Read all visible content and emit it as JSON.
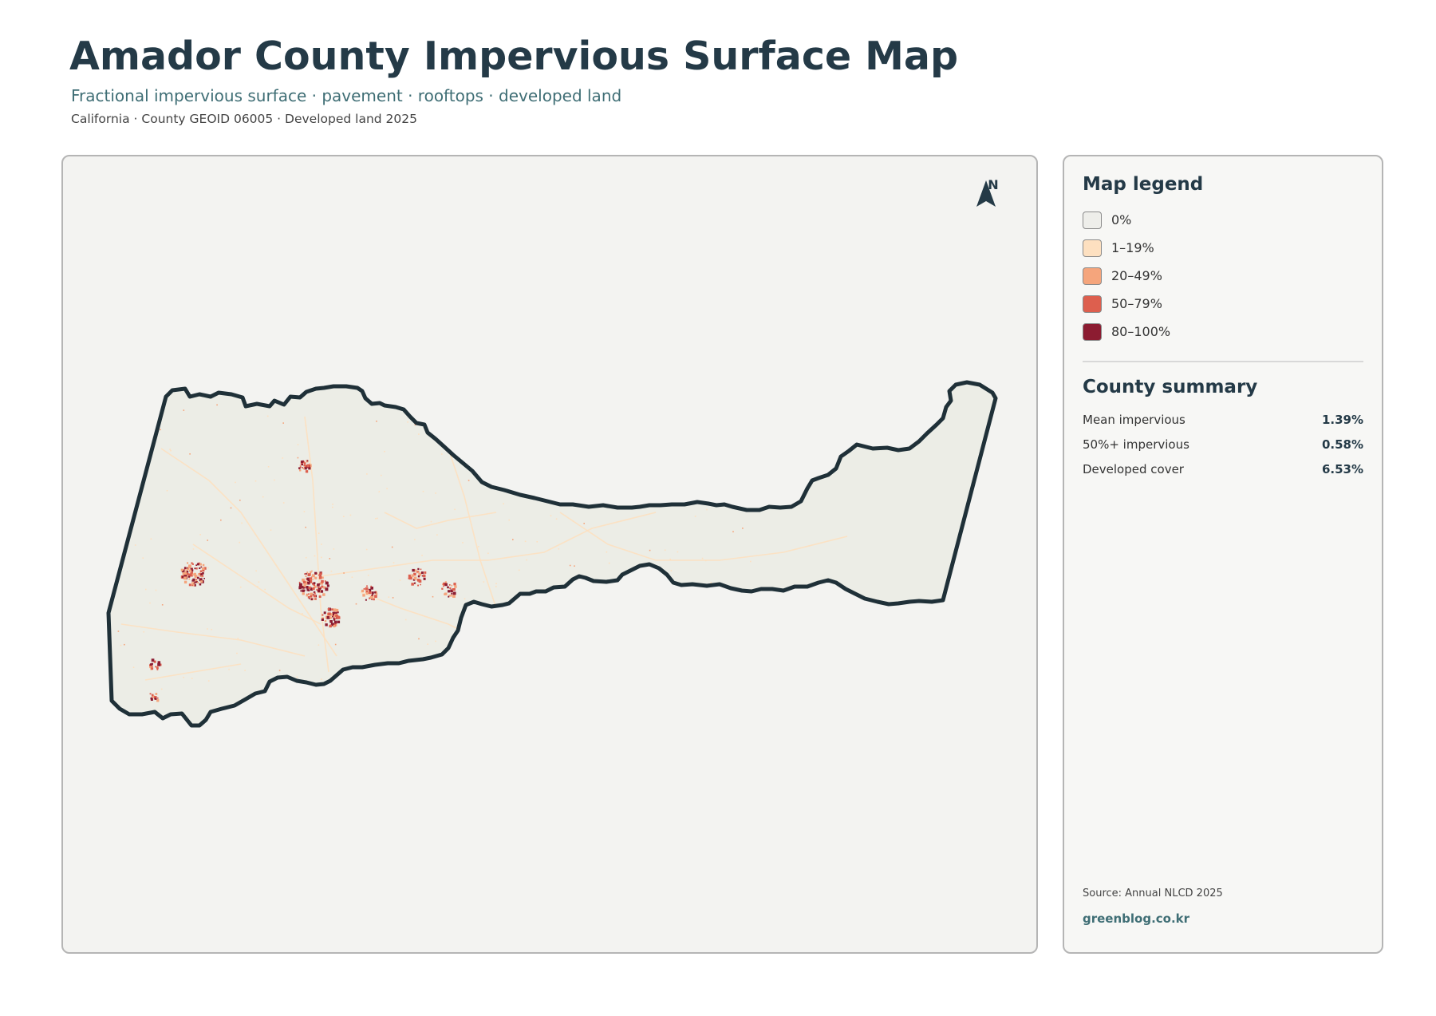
{
  "header": {
    "title": "Amador County Impervious Surface Map",
    "subtitle": "Fractional impervious surface · pavement · rooftops · developed land",
    "meta": "California · County GEOID 06005 · Developed land 2025"
  },
  "map": {
    "north_label": "N",
    "colors": {
      "background": "#f3f3f1",
      "county_fill": "#ecede6",
      "boundary": "#1f3038"
    }
  },
  "legend": {
    "title": "Map legend",
    "items": [
      {
        "label": "0%",
        "color": "#eeeeea"
      },
      {
        "label": "1–19%",
        "color": "#fde0c0"
      },
      {
        "label": "20–49%",
        "color": "#f5a57c"
      },
      {
        "label": "50–79%",
        "color": "#dd5f4e"
      },
      {
        "label": "80–100%",
        "color": "#8c1c31"
      }
    ]
  },
  "summary": {
    "title": "County summary",
    "rows": [
      {
        "label": "Mean impervious",
        "value": "1.39%"
      },
      {
        "label": "50%+ impervious",
        "value": "0.58%"
      },
      {
        "label": "Developed cover",
        "value": "6.53%"
      }
    ]
  },
  "footer": {
    "source": "Source: Annual NLCD 2025",
    "credit": "greenblog.co.kr"
  }
}
